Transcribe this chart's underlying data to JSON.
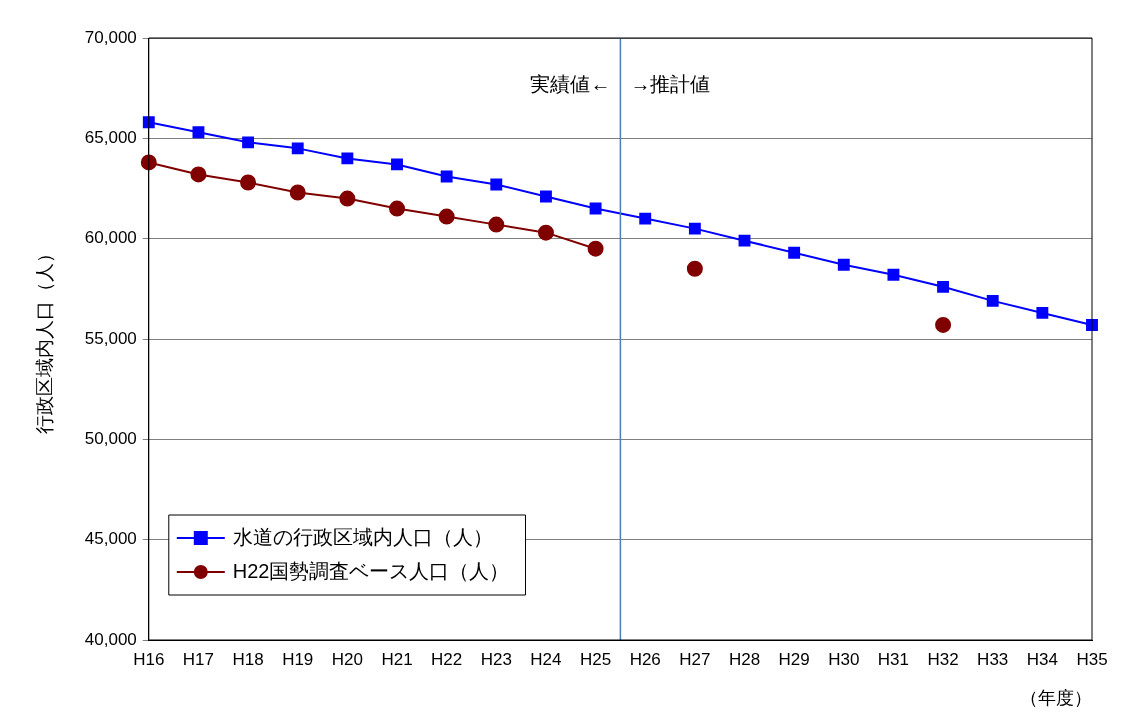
{
  "chart_data": {
    "type": "line",
    "xlabel": "（年度）",
    "ylabel": "行政区域内人口（人）",
    "categories": [
      "H16",
      "H17",
      "H18",
      "H19",
      "H20",
      "H21",
      "H22",
      "H23",
      "H24",
      "H25",
      "H26",
      "H27",
      "H28",
      "H29",
      "H30",
      "H31",
      "H32",
      "H33",
      "H34",
      "H35"
    ],
    "series": [
      {
        "name": "水道の行政区域内人口（人）",
        "color": "#0000ff",
        "marker": "square",
        "values": [
          65800,
          65300,
          64800,
          64500,
          64000,
          63700,
          63100,
          62700,
          62100,
          61500,
          61000,
          60500,
          59900,
          59300,
          58700,
          58200,
          57600,
          56900,
          56300,
          55700
        ]
      },
      {
        "name": "H22国勢調査ベース人口（人）",
        "color": "#800000",
        "marker": "circle",
        "values": [
          63800,
          63200,
          62800,
          62300,
          62000,
          61500,
          61100,
          60700,
          60300,
          59500,
          null,
          58500,
          null,
          null,
          null,
          null,
          55700,
          null,
          null,
          null
        ]
      }
    ],
    "ylim": [
      40000,
      70000
    ],
    "yticks": [
      {
        "value": 40000,
        "label": "40,000"
      },
      {
        "value": 45000,
        "label": "45,000"
      },
      {
        "value": 50000,
        "label": "50,000"
      },
      {
        "value": 55000,
        "label": "55,000"
      },
      {
        "value": 60000,
        "label": "60,000"
      },
      {
        "value": 65000,
        "label": "65,000"
      },
      {
        "value": 70000,
        "label": "70,000"
      }
    ],
    "grid": "y",
    "legend": "bottom left",
    "ref_lines": [
      {
        "axis": "x",
        "value": "H25",
        "label": "実績値←　→推計値",
        "color": "#4a7ebb"
      }
    ]
  }
}
